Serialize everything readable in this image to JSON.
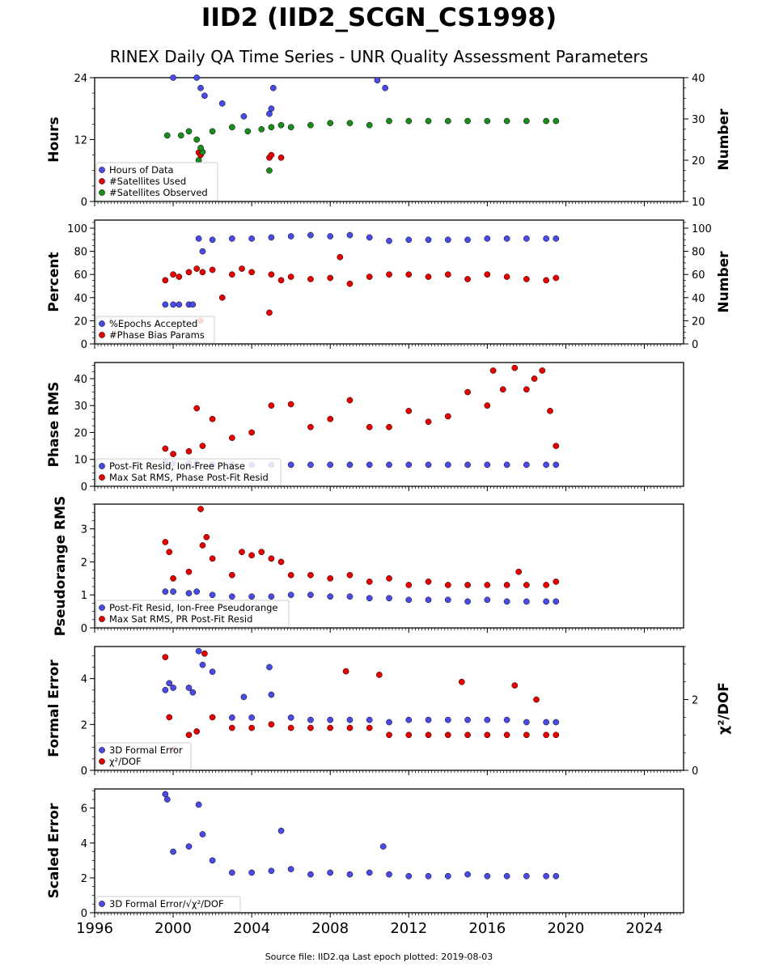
{
  "title": "IID2 (IID2_SCGN_CS1998)",
  "subtitle": "RINEX Daily QA Time Series - UNR Quality Assessment Parameters",
  "footer": "Source file: IID2.qa Last epoch plotted: 2019-08-03",
  "colors": {
    "blue": "#4a4ae6",
    "red": "#e60000",
    "green": "#1a8c1a"
  },
  "chart_data": [
    {
      "type": "scatter",
      "xlabel": "",
      "xlim": [
        1996,
        2026
      ],
      "xticks": [
        "1996",
        "2000",
        "2004",
        "2008",
        "2012",
        "2016",
        "2020",
        "2024"
      ],
      "ylabel": "Hours",
      "ylim": [
        0,
        24
      ],
      "yticks": [
        "0",
        "12",
        "24"
      ],
      "y2label": "Number",
      "y2lim": [
        10,
        40
      ],
      "y2ticks": [
        "10",
        "20",
        "30",
        "40"
      ],
      "legend": "bottom-left",
      "series": [
        {
          "name": "Hours of Data",
          "color": "blue",
          "axis": "left",
          "x": [
            2000.0,
            2001.2,
            2001.4,
            2001.6,
            2002.5,
            2003.6,
            2004.9,
            2005.0,
            2005.1,
            2010.4,
            2010.8
          ],
          "y": [
            24,
            24,
            22,
            20.5,
            19,
            16.5,
            17,
            18,
            22,
            23.5,
            22
          ]
        },
        {
          "name": "#Satellites Used",
          "color": "red",
          "axis": "left",
          "x": [
            2001.3,
            2001.4,
            2004.9,
            2005.0,
            2005.5
          ],
          "y": [
            9.5,
            9.0,
            8.5,
            9.0,
            8.5
          ]
        },
        {
          "name": "#Satellites Observed",
          "color": "green",
          "axis": "right",
          "x": [
            1999.7,
            2000.4,
            2000.8,
            2001.2,
            2001.5,
            2002.0,
            2003.0,
            2003.8,
            2004.5,
            2005.0,
            2005.5,
            2006.0,
            2007.0,
            2008.0,
            2009.0,
            2010.0,
            2011.0,
            2012.0,
            2013.0,
            2014.0,
            2015.0,
            2016.0,
            2017.0,
            2018.0,
            2019.0,
            2019.5,
            2001.3,
            2001.4,
            2004.9
          ],
          "y": [
            26,
            26,
            27,
            25,
            22,
            27,
            28,
            27,
            27.5,
            28,
            28.5,
            28,
            28.5,
            29,
            29,
            28.5,
            29.5,
            29.5,
            29.5,
            29.5,
            29.5,
            29.5,
            29.5,
            29.5,
            29.5,
            29.5,
            20,
            23,
            17.5
          ]
        }
      ]
    },
    {
      "type": "scatter",
      "ylabel": "Percent",
      "ylim": [
        0,
        107
      ],
      "yticks": [
        "0",
        "20",
        "40",
        "60",
        "80",
        "100"
      ],
      "y2label": "Number",
      "y2lim": [
        0,
        107
      ],
      "y2ticks": [
        "0",
        "20",
        "40",
        "60",
        "80",
        "100"
      ],
      "legend": "bottom-left",
      "series": [
        {
          "name": "%Epochs Accepted",
          "color": "blue",
          "axis": "left",
          "x": [
            1999.6,
            2000.0,
            2000.3,
            2000.8,
            2001.0,
            2001.3,
            2001.5,
            2002.0,
            2003.0,
            2004.0,
            2005.0,
            2006.0,
            2007.0,
            2008.0,
            2009.0,
            2010.0,
            2011.0,
            2012.0,
            2013.0,
            2014.0,
            2015.0,
            2016.0,
            2017.0,
            2018.0,
            2019.0,
            2019.5
          ],
          "y": [
            34,
            34,
            34,
            34,
            34,
            91,
            80,
            90,
            91,
            91,
            92,
            93,
            94,
            93,
            94,
            92,
            89,
            90,
            90,
            90,
            90,
            91,
            91,
            91,
            91,
            91
          ]
        },
        {
          "name": "#Phase Bias Params",
          "color": "red",
          "axis": "right",
          "x": [
            1999.6,
            2000.0,
            2000.3,
            2000.8,
            2001.2,
            2001.5,
            2002.0,
            2003.0,
            2003.5,
            2004.0,
            2005.0,
            2005.5,
            2006.0,
            2007.0,
            2008.0,
            2008.5,
            2009.0,
            2010.0,
            2011.0,
            2012.0,
            2013.0,
            2014.0,
            2015.0,
            2016.0,
            2017.0,
            2018.0,
            2019.0,
            2019.5,
            2001.4,
            2002.5,
            2004.9
          ],
          "y": [
            55,
            60,
            58,
            62,
            65,
            62,
            64,
            60,
            65,
            62,
            60,
            55,
            58,
            56,
            57,
            75,
            52,
            58,
            60,
            60,
            58,
            60,
            56,
            60,
            58,
            56,
            55,
            57,
            20,
            40,
            27
          ]
        }
      ]
    },
    {
      "type": "scatter",
      "ylabel": "Phase RMS",
      "ylim": [
        0,
        46
      ],
      "yticks": [
        "0",
        "10",
        "20",
        "30",
        "40"
      ],
      "legend": "bottom-left",
      "series": [
        {
          "name": "Post-Fit Resid, Ion-Free Phase",
          "color": "blue",
          "axis": "left",
          "x": [
            1999.6,
            2000.0,
            2000.8,
            2001.2,
            2002.0,
            2003.0,
            2004.0,
            2005.0,
            2006.0,
            2007.0,
            2008.0,
            2009.0,
            2010.0,
            2011.0,
            2012.0,
            2013.0,
            2014.0,
            2015.0,
            2016.0,
            2017.0,
            2018.0,
            2019.0,
            2019.5
          ],
          "y": [
            9,
            8.5,
            8.5,
            8.5,
            8,
            8,
            8,
            8,
            8,
            8,
            8,
            8,
            8,
            8,
            8,
            8,
            8,
            8,
            8,
            8,
            8,
            8,
            8
          ]
        },
        {
          "name": "Max Sat RMS, Phase Post-Fit Resid",
          "color": "red",
          "axis": "left",
          "x": [
            1999.6,
            2000.0,
            2000.8,
            2001.2,
            2001.5,
            2002.0,
            2003.0,
            2004.0,
            2005.0,
            2006.0,
            2007.0,
            2008.0,
            2009.0,
            2010.0,
            2011.0,
            2012.0,
            2013.0,
            2014.0,
            2015.0,
            2016.0,
            2016.3,
            2016.8,
            2017.4,
            2018.0,
            2018.4,
            2018.8,
            2019.2,
            2019.5
          ],
          "y": [
            14,
            12,
            13,
            29,
            15,
            25,
            18,
            20,
            30,
            30.5,
            22,
            25,
            32,
            22,
            22,
            28,
            24,
            26,
            35,
            30,
            43,
            36,
            44,
            36,
            40,
            43,
            28,
            15
          ]
        }
      ]
    },
    {
      "type": "scatter",
      "ylabel": "Pseudorange RMS",
      "ylim": [
        0,
        3.75
      ],
      "yticks": [
        "0",
        "1",
        "2",
        "3"
      ],
      "legend": "bottom-left",
      "series": [
        {
          "name": "Post-Fit Resid, Ion-Free Pseudorange",
          "color": "blue",
          "axis": "left",
          "x": [
            1999.6,
            2000.0,
            2000.8,
            2001.2,
            2002.0,
            2003.0,
            2004.0,
            2005.0,
            2006.0,
            2007.0,
            2008.0,
            2009.0,
            2010.0,
            2011.0,
            2012.0,
            2013.0,
            2014.0,
            2015.0,
            2016.0,
            2017.0,
            2018.0,
            2019.0,
            2019.5
          ],
          "y": [
            1.1,
            1.1,
            1.05,
            1.1,
            1.0,
            0.95,
            0.95,
            0.95,
            1.0,
            1.0,
            0.95,
            0.95,
            0.9,
            0.9,
            0.85,
            0.85,
            0.85,
            0.8,
            0.85,
            0.8,
            0.8,
            0.8,
            0.8
          ]
        },
        {
          "name": "Max Sat RMS, PR Post-Fit Resid",
          "color": "red",
          "axis": "left",
          "x": [
            1999.6,
            1999.8,
            2000.0,
            2000.8,
            2001.4,
            2001.5,
            2001.7,
            2002.0,
            2003.0,
            2003.5,
            2004.0,
            2004.5,
            2005.0,
            2005.5,
            2006.0,
            2007.0,
            2008.0,
            2009.0,
            2010.0,
            2011.0,
            2012.0,
            2013.0,
            2014.0,
            2015.0,
            2016.0,
            2017.0,
            2017.6,
            2018.0,
            2019.0,
            2019.5
          ],
          "y": [
            2.6,
            2.3,
            1.5,
            1.7,
            3.6,
            2.5,
            2.75,
            2.1,
            1.6,
            2.3,
            2.2,
            2.3,
            2.1,
            2.0,
            1.6,
            1.6,
            1.5,
            1.6,
            1.4,
            1.5,
            1.3,
            1.4,
            1.3,
            1.3,
            1.3,
            1.3,
            1.7,
            1.3,
            1.3,
            1.4
          ]
        }
      ]
    },
    {
      "type": "scatter",
      "ylabel": "Formal Error",
      "ylim": [
        0,
        5.4
      ],
      "yticks": [
        "0",
        "2",
        "4"
      ],
      "y2label": "χ²/DOF",
      "y2lim": [
        0,
        3.5
      ],
      "y2ticks": [
        "0",
        "2"
      ],
      "legend": "bottom-left",
      "series": [
        {
          "name": "3D Formal Error",
          "color": "blue",
          "axis": "left",
          "x": [
            1999.6,
            1999.8,
            2000.0,
            2000.8,
            2001.0,
            2001.3,
            2001.5,
            2002.0,
            2003.0,
            2003.6,
            2004.0,
            2004.9,
            2005.0,
            2006.0,
            2007.0,
            2008.0,
            2009.0,
            2010.0,
            2011.0,
            2012.0,
            2013.0,
            2014.0,
            2015.0,
            2016.0,
            2017.0,
            2018.0,
            2019.0,
            2019.5
          ],
          "y": [
            3.5,
            3.8,
            3.6,
            3.6,
            3.4,
            5.2,
            4.6,
            4.3,
            2.3,
            3.2,
            2.3,
            4.5,
            3.3,
            2.3,
            2.2,
            2.2,
            2.2,
            2.2,
            2.1,
            2.2,
            2.2,
            2.2,
            2.2,
            2.2,
            2.2,
            2.1,
            2.1,
            2.1
          ]
        },
        {
          "name": "χ²/DOF",
          "color": "red",
          "axis": "right",
          "x": [
            1999.6,
            1999.8,
            2000.0,
            2000.8,
            2001.2,
            2001.6,
            2002.0,
            2003.0,
            2004.0,
            2005.0,
            2006.0,
            2007.0,
            2008.0,
            2008.8,
            2009.0,
            2010.0,
            2010.5,
            2011.0,
            2012.0,
            2013.0,
            2014.0,
            2014.7,
            2015.0,
            2016.0,
            2017.0,
            2017.4,
            2018.0,
            2018.5,
            2019.0,
            2019.5
          ],
          "y": [
            3.2,
            1.5,
            0.6,
            1.0,
            1.1,
            3.3,
            1.5,
            1.2,
            1.2,
            1.3,
            1.2,
            1.2,
            1.2,
            2.8,
            1.2,
            1.2,
            2.7,
            1.0,
            1.0,
            1.0,
            1.0,
            2.5,
            1.0,
            1.0,
            1.0,
            2.4,
            1.0,
            2.0,
            1.0,
            1.0
          ]
        }
      ]
    },
    {
      "type": "scatter",
      "ylabel": "Scaled Error",
      "ylim": [
        0,
        7.1
      ],
      "yticks": [
        "0",
        "2",
        "4",
        "6"
      ],
      "legend": "bottom-left",
      "series": [
        {
          "name": "3D Formal Error/√χ²/DOF",
          "color": "blue",
          "axis": "left",
          "x": [
            1999.6,
            1999.7,
            2000.0,
            2000.8,
            2001.3,
            2001.5,
            2002.0,
            2003.0,
            2004.0,
            2005.0,
            2005.5,
            2006.0,
            2007.0,
            2008.0,
            2009.0,
            2010.0,
            2010.7,
            2011.0,
            2012.0,
            2013.0,
            2014.0,
            2015.0,
            2016.0,
            2017.0,
            2018.0,
            2019.0,
            2019.5
          ],
          "y": [
            6.8,
            6.5,
            3.5,
            3.8,
            6.2,
            4.5,
            3.0,
            2.3,
            2.3,
            2.4,
            4.7,
            2.5,
            2.2,
            2.3,
            2.2,
            2.3,
            3.8,
            2.2,
            2.1,
            2.1,
            2.1,
            2.2,
            2.1,
            2.1,
            2.1,
            2.1,
            2.1
          ]
        }
      ]
    }
  ]
}
